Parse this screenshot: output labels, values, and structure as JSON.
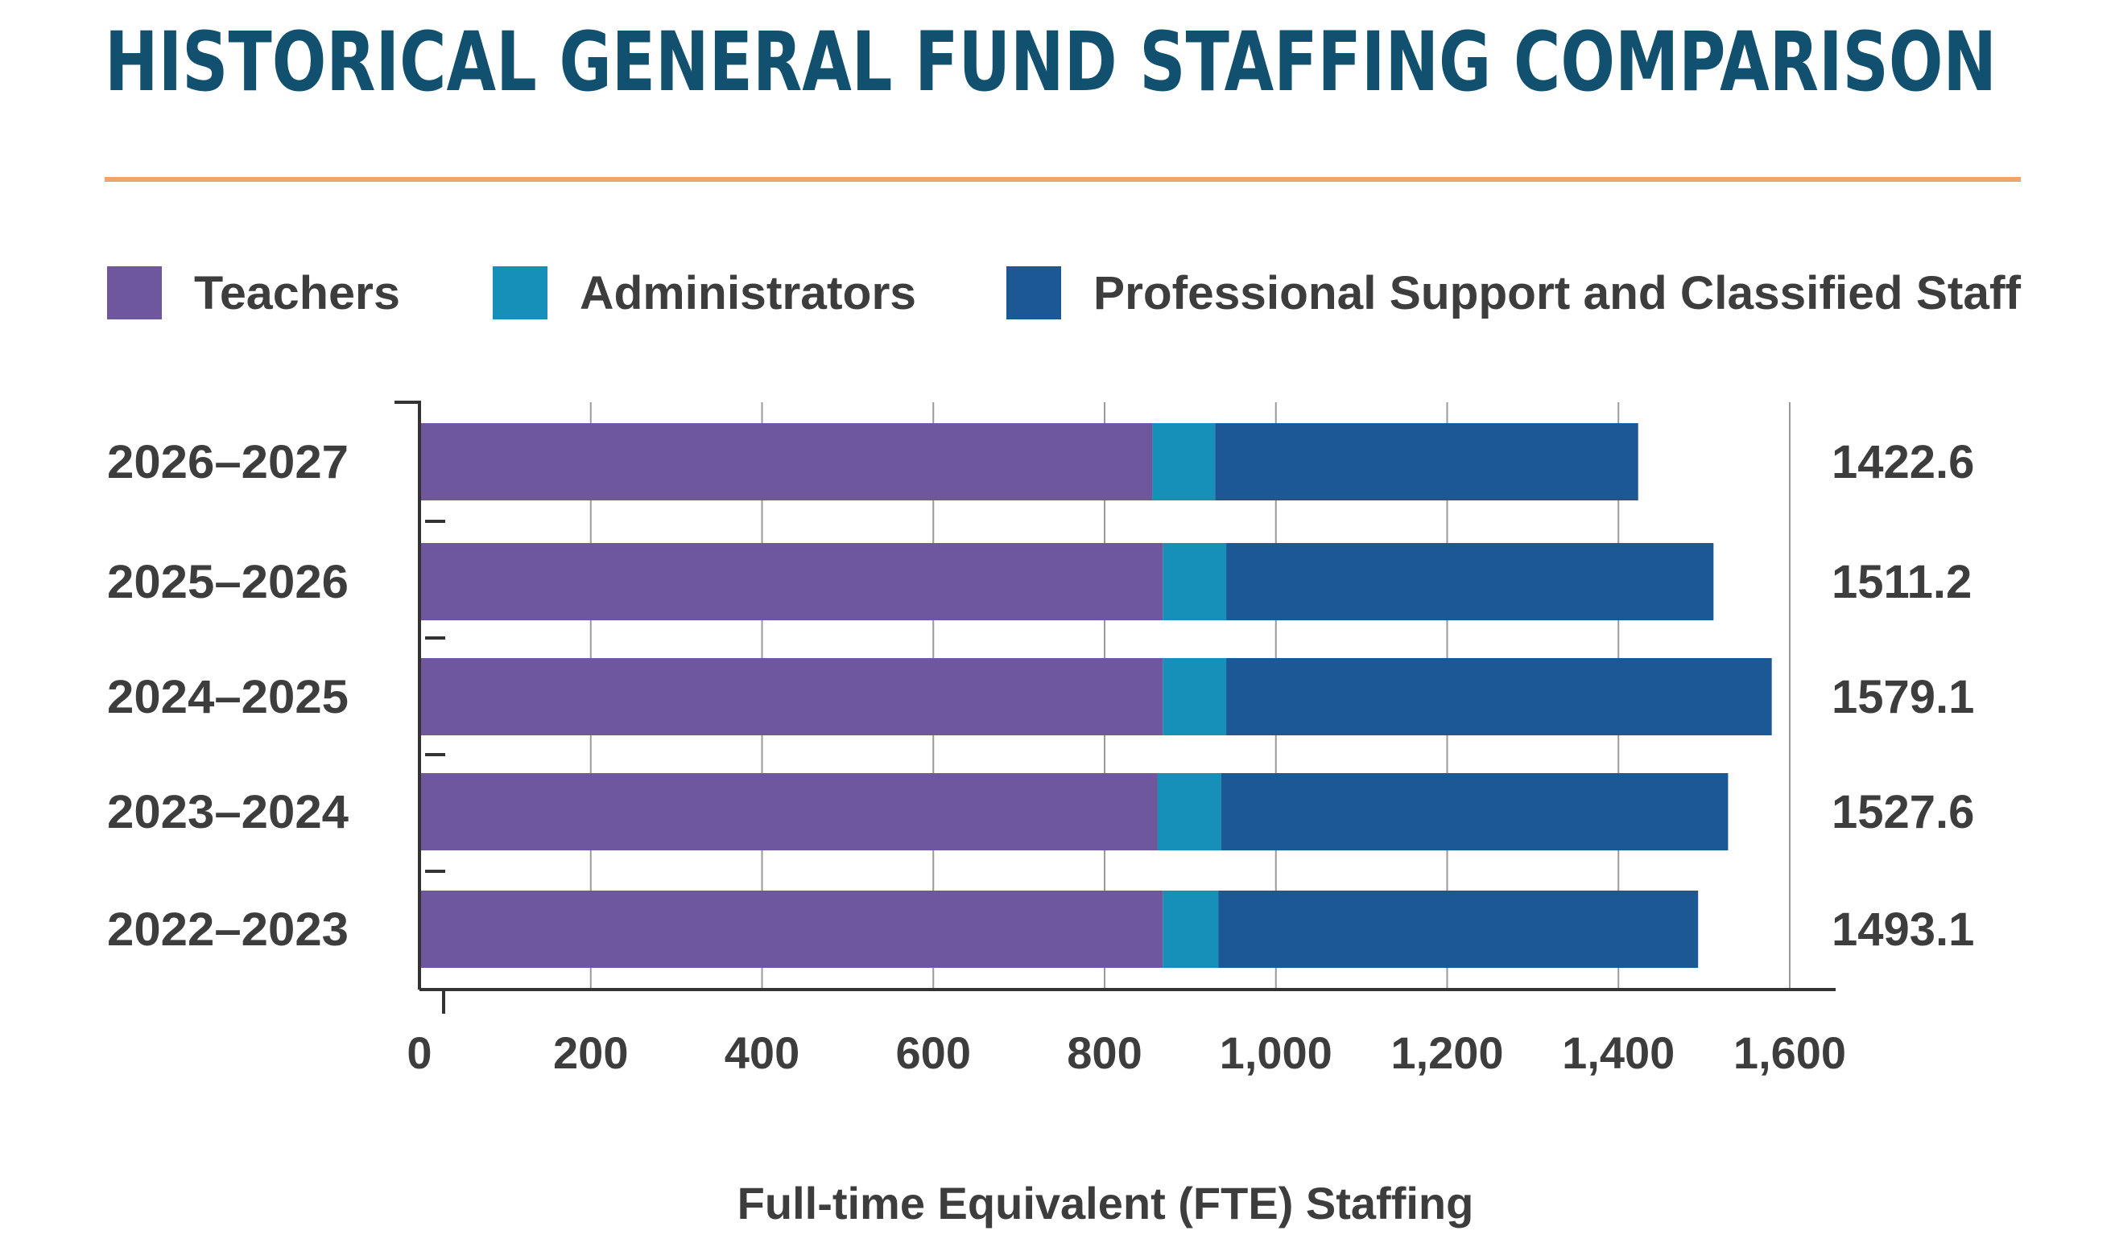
{
  "chart_data": {
    "type": "bar",
    "orientation": "horizontal",
    "stacked": true,
    "title": "HISTORICAL GENERAL FUND STAFFING COMPARISON",
    "xlabel": "Full-time Equivalent (FTE) Staffing",
    "ylabel": "",
    "xlim": [
      0,
      1650
    ],
    "x_ticks": [
      0,
      200,
      400,
      600,
      800,
      1000,
      1200,
      1400,
      1600
    ],
    "x_tick_labels": [
      "0",
      "200",
      "400",
      "600",
      "800",
      "1,000",
      "1,200",
      "1,400",
      "1,600"
    ],
    "grid": "vertical",
    "legend_position": "top",
    "categories": [
      "2026–2027",
      "2025–2026",
      "2024–2025",
      "2023–2024",
      "2022–2023"
    ],
    "series": [
      {
        "name": "Teachers",
        "color": "#6f579d",
        "values": [
          856,
          868,
          868,
          862,
          868
        ]
      },
      {
        "name": "Administrators",
        "color": "#1690b8",
        "values": [
          73,
          74,
          74,
          74,
          65
        ]
      },
      {
        "name": "Professional Support and Classified Staff",
        "color": "#1c5893",
        "values": [
          494,
          569,
          637,
          592,
          560
        ]
      }
    ],
    "totals": [
      "1422.6",
      "1511.2",
      "1579.1",
      "1527.6",
      "1493.1"
    ]
  },
  "colors": {
    "title": "#11506f",
    "rule": "#f0a46b",
    "text": "#3d3d3d",
    "axis": "#333333",
    "grid": "#9a9a9a"
  }
}
